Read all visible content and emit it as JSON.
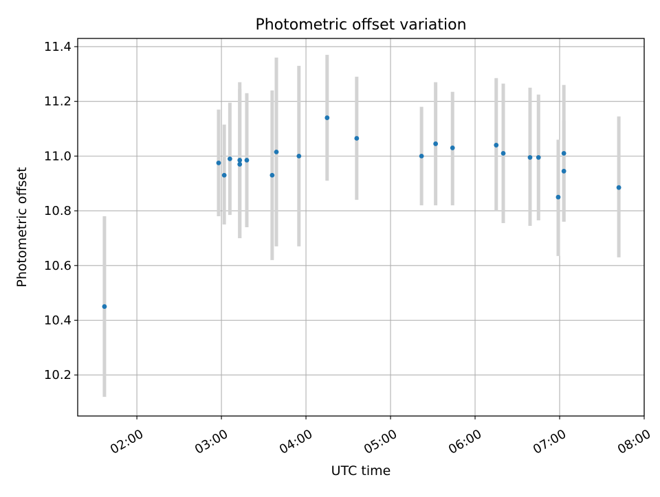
{
  "chart_data": {
    "type": "scatter",
    "title": "Photometric offset variation",
    "xlabel": "UTC time",
    "ylabel": "Photometric offset",
    "grid": true,
    "xlim": [
      "01:18",
      "08:00"
    ],
    "ylim": [
      10.05,
      11.43
    ],
    "xticks": [
      "02:00",
      "03:00",
      "04:00",
      "05:00",
      "06:00",
      "07:00",
      "08:00"
    ],
    "yticks": [
      "10.2",
      "10.4",
      "10.6",
      "10.8",
      "11.0",
      "11.2",
      "11.4"
    ],
    "point_color": "#1f77b4",
    "errorbar_color": "#d3d3d3",
    "points": [
      {
        "x": "01:37",
        "y": 10.45,
        "lo": 10.12,
        "hi": 10.78
      },
      {
        "x": "02:58",
        "y": 10.975,
        "lo": 10.78,
        "hi": 11.17
      },
      {
        "x": "03:02",
        "y": 10.93,
        "lo": 10.75,
        "hi": 11.115
      },
      {
        "x": "03:06",
        "y": 10.99,
        "lo": 10.785,
        "hi": 11.195
      },
      {
        "x": "03:13",
        "y": 10.985,
        "lo": 10.7,
        "hi": 11.27
      },
      {
        "x": "03:13",
        "y": 10.97,
        "lo": 10.7,
        "hi": 11.245
      },
      {
        "x": "03:18",
        "y": 10.985,
        "lo": 10.74,
        "hi": 11.23
      },
      {
        "x": "03:36",
        "y": 10.93,
        "lo": 10.62,
        "hi": 11.24
      },
      {
        "x": "03:39",
        "y": 11.015,
        "lo": 10.67,
        "hi": 11.36
      },
      {
        "x": "03:55",
        "y": 11.0,
        "lo": 10.67,
        "hi": 11.33
      },
      {
        "x": "04:15",
        "y": 11.14,
        "lo": 10.91,
        "hi": 11.37
      },
      {
        "x": "04:36",
        "y": 11.065,
        "lo": 10.84,
        "hi": 11.29
      },
      {
        "x": "05:22",
        "y": 11.0,
        "lo": 10.82,
        "hi": 11.18
      },
      {
        "x": "05:32",
        "y": 11.045,
        "lo": 10.82,
        "hi": 11.27
      },
      {
        "x": "05:44",
        "y": 11.03,
        "lo": 10.82,
        "hi": 11.235
      },
      {
        "x": "06:15",
        "y": 11.04,
        "lo": 10.8,
        "hi": 11.285
      },
      {
        "x": "06:20",
        "y": 11.01,
        "lo": 10.755,
        "hi": 11.265
      },
      {
        "x": "06:39",
        "y": 10.995,
        "lo": 10.745,
        "hi": 11.25
      },
      {
        "x": "06:45",
        "y": 10.995,
        "lo": 10.765,
        "hi": 11.225
      },
      {
        "x": "06:59",
        "y": 10.85,
        "lo": 10.635,
        "hi": 11.06
      },
      {
        "x": "07:03",
        "y": 10.945,
        "lo": 10.76,
        "hi": 11.13
      },
      {
        "x": "07:03",
        "y": 11.01,
        "lo": 10.76,
        "hi": 11.26
      },
      {
        "x": "07:42",
        "y": 10.885,
        "lo": 10.63,
        "hi": 11.145
      }
    ]
  }
}
